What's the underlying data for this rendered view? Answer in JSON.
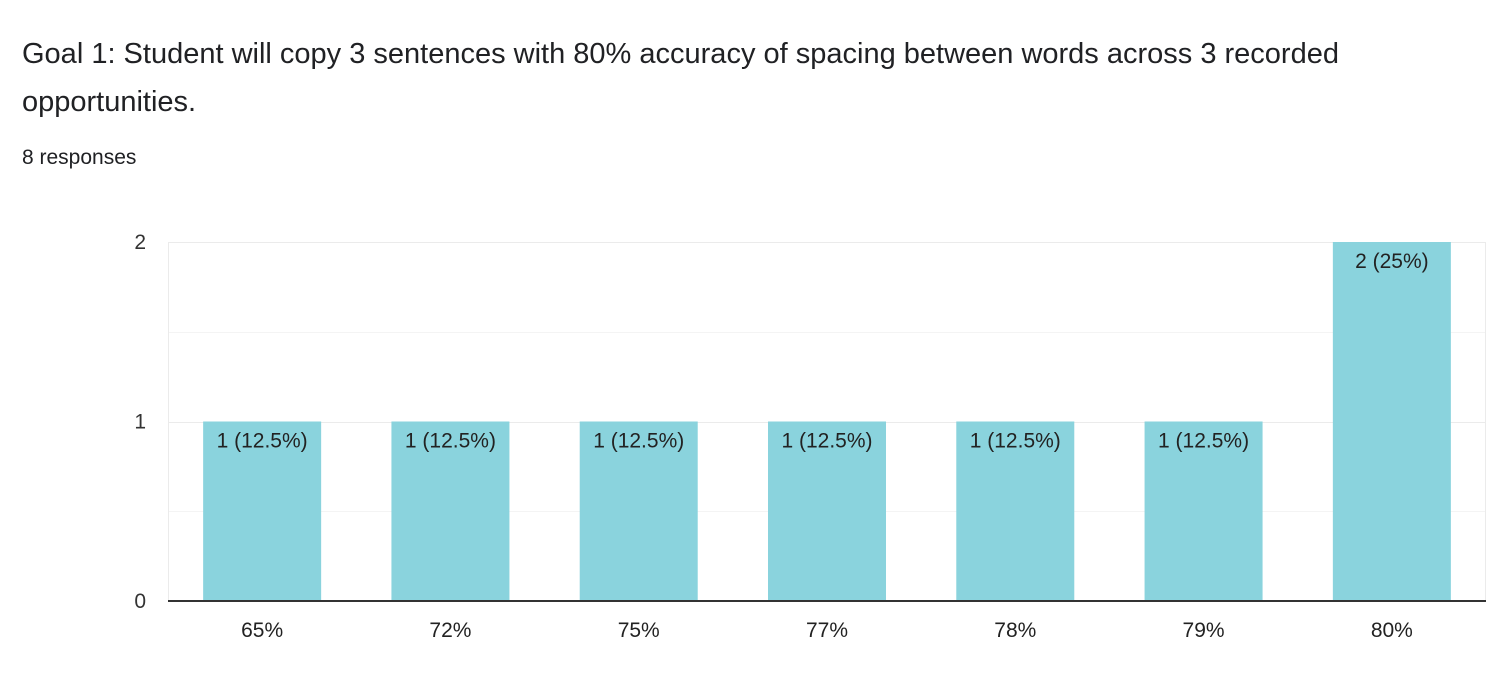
{
  "question": {
    "title": "Goal 1: Student will copy 3 sentences with 80% accuracy of spacing between words across 3 recorded opportunities.",
    "responses_label": "8 responses"
  },
  "colors": {
    "bar": "#8ad3dd",
    "axis": "#333333",
    "grid": "#ebebeb"
  },
  "chart_data": {
    "type": "bar",
    "categories": [
      "65%",
      "72%",
      "75%",
      "77%",
      "78%",
      "79%",
      "80%"
    ],
    "values": [
      1,
      1,
      1,
      1,
      1,
      1,
      2
    ],
    "data_labels": [
      "1 (12.5%)",
      "1 (12.5%)",
      "1 (12.5%)",
      "1 (12.5%)",
      "1 (12.5%)",
      "1 (12.5%)",
      "2 (25%)"
    ],
    "y_ticks": [
      "0",
      "1",
      "2"
    ],
    "ylim": [
      0,
      2
    ],
    "grid": true,
    "title": "",
    "xlabel": "",
    "ylabel": ""
  }
}
